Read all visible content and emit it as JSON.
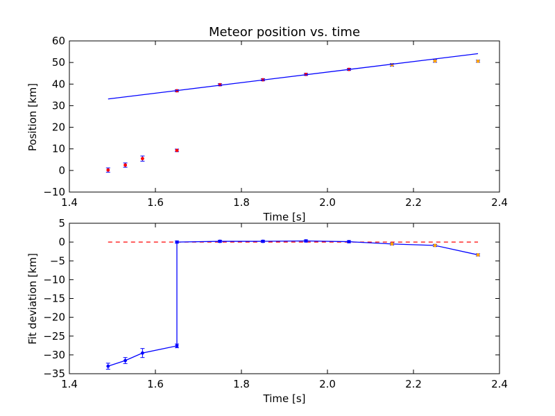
{
  "chart_data": [
    {
      "type": "scatter",
      "title": "Meteor position vs. time",
      "xlabel": "Time [s]",
      "ylabel": "Position [km]",
      "xlim": [
        1.4,
        2.4
      ],
      "ylim": [
        -10,
        60
      ],
      "xticks": [
        "1.4",
        "1.6",
        "1.8",
        "2.0",
        "2.2",
        "2.4"
      ],
      "yticks": [
        "−10",
        "0",
        "10",
        "20",
        "30",
        "40",
        "50",
        "60"
      ],
      "grid": false,
      "series": [
        {
          "kind": "points",
          "color": "#ff0000",
          "x": [
            1.49,
            1.53,
            1.57,
            1.65,
            1.75,
            1.85,
            1.95,
            2.05
          ],
          "y": [
            0.2,
            2.5,
            5.5,
            9.3,
            39.7,
            42.0,
            44.5,
            46.8
          ],
          "yerr": [
            1.0,
            1.0,
            1.2,
            0.6,
            0.5,
            0.5,
            0.5,
            0.5
          ]
        },
        {
          "kind": "points",
          "color": "#ffa500",
          "x": [
            2.15,
            2.25,
            2.35
          ],
          "y": [
            48.9,
            50.7,
            50.6
          ],
          "yerr": [
            0.6,
            0.6,
            0.5
          ]
        },
        {
          "kind": "points",
          "color": "#ff0000",
          "x": [
            1.65
          ],
          "y": [
            36.9
          ],
          "yerr": [
            0.5
          ]
        },
        {
          "kind": "line",
          "color": "#0000ff",
          "x": [
            1.49,
            2.35
          ],
          "y": [
            33.1,
            54.1
          ]
        }
      ]
    },
    {
      "type": "line",
      "title": "",
      "xlabel": "Time [s]",
      "ylabel": "Fit deviation [km]",
      "xlim": [
        1.4,
        2.4
      ],
      "ylim": [
        -35,
        5
      ],
      "xticks": [
        "1.4",
        "1.6",
        "1.8",
        "2.0",
        "2.2",
        "2.4"
      ],
      "yticks": [
        "−35",
        "−30",
        "−25",
        "−20",
        "−15",
        "−10",
        "−5",
        "0",
        "5"
      ],
      "grid": false,
      "series": [
        {
          "kind": "dashed",
          "color": "#ff0000",
          "x": [
            1.49,
            2.35
          ],
          "y": [
            0,
            0
          ]
        },
        {
          "kind": "line-with-markers",
          "color": "#0000ff",
          "x": [
            1.49,
            1.53,
            1.57,
            1.65,
            1.65,
            1.75,
            1.85,
            1.95,
            2.05,
            2.15,
            2.25,
            2.35
          ],
          "y": [
            -33.0,
            -31.5,
            -29.5,
            -27.6,
            0.0,
            0.2,
            0.2,
            0.3,
            0.1,
            -0.5,
            -0.9,
            -3.4
          ],
          "yerr": [
            0.8,
            0.8,
            1.2,
            0.5,
            0.3,
            0.3,
            0.3,
            0.3,
            0.3,
            0.3,
            0.3,
            0.3
          ],
          "marker_colors": [
            "#0000ff",
            "#0000ff",
            "#0000ff",
            "#0000ff",
            "#0000ff",
            "#0000ff",
            "#0000ff",
            "#0000ff",
            "#0000ff",
            "#ffa500",
            "#ffa500",
            "#ffa500"
          ]
        }
      ]
    }
  ]
}
